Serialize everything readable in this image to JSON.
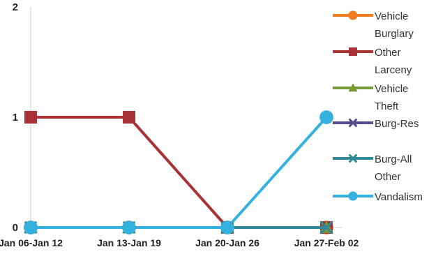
{
  "chart_data": {
    "type": "line",
    "title": "",
    "xlabel": "",
    "ylabel": "",
    "categories": [
      "Jan 06-Jan 12",
      "Jan 13-Jan 19",
      "Jan 20-Jan 26",
      "Jan 27-Feb 02"
    ],
    "ylim": [
      0,
      2
    ],
    "yticks": [
      "0",
      "1",
      "2"
    ],
    "grid": false,
    "legend_position": "right",
    "series": [
      {
        "name": "Vehicle Burglary",
        "legend_lines": [
          "Vehicle",
          "Burglary"
        ],
        "values": [
          0,
          0,
          0,
          0
        ],
        "color": "#f07c22",
        "marker": "circle"
      },
      {
        "name": "Other Larceny",
        "legend_lines": [
          "Other",
          "Larceny"
        ],
        "values": [
          1,
          1,
          0,
          0
        ],
        "color": "#a83234",
        "marker": "square"
      },
      {
        "name": "Vehicle Theft",
        "legend_lines": [
          "Vehicle",
          "Theft"
        ],
        "values": [
          0,
          0,
          0,
          0
        ],
        "color": "#7a9a3a",
        "marker": "triangle"
      },
      {
        "name": "Burg-Res",
        "legend_lines": [
          "Burg-Res"
        ],
        "values": [
          0,
          0,
          0,
          0
        ],
        "color": "#5b4a8b",
        "marker": "x"
      },
      {
        "name": "Burg-All Other",
        "legend_lines": [
          "Burg-All",
          "Other"
        ],
        "values": [
          0,
          0,
          0,
          0
        ],
        "color": "#2e8b9a",
        "marker": "x"
      },
      {
        "name": "Vandalism",
        "legend_lines": [
          "Vandalism"
        ],
        "values": [
          0,
          0,
          0,
          1
        ],
        "color": "#35b1e0",
        "marker": "circle"
      }
    ]
  }
}
